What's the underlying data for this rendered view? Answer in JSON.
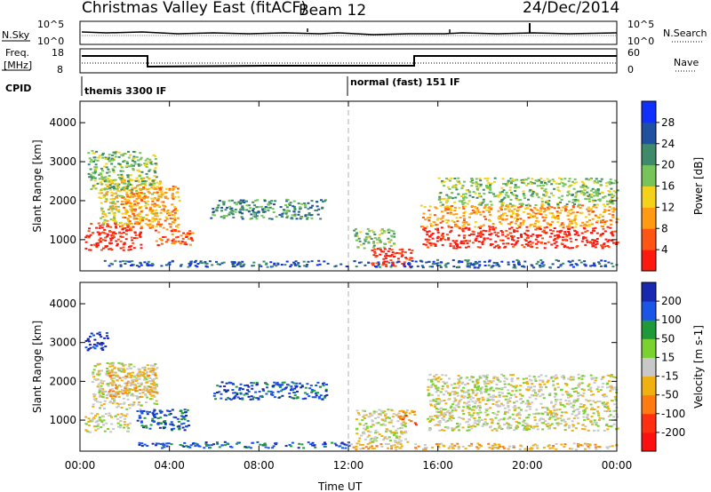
{
  "header": {
    "title": "Christmas Valley East (fitACF)",
    "beam": "Beam 12",
    "date": "24/Dec/2014"
  },
  "noise_panel": {
    "left_label": "N.Sky",
    "right_label": "N.Search",
    "left_ticks": [
      "10^5",
      "10^0"
    ],
    "right_ticks": [
      "10^5",
      "10^0"
    ]
  },
  "freq_panel": {
    "left_label_1": "Freq.",
    "left_label_2": "[MHz]",
    "right_label": "Nave",
    "left_ticks": [
      "18",
      "8"
    ],
    "right_ticks": [
      "60",
      "0"
    ]
  },
  "cpid": {
    "label": "CPID",
    "modes": [
      "themis 3300 IF",
      "normal (fast) 151 IF"
    ]
  },
  "x_axis": {
    "ticks": [
      "00:00",
      "04:00",
      "08:00",
      "12:00",
      "16:00",
      "20:00",
      "00:00"
    ],
    "label": "Time UT"
  },
  "chart_data": [
    {
      "type": "heatmap",
      "name": "power",
      "ylabel": "Slant Range [km]",
      "yticks": [
        1000,
        2000,
        3000,
        4000
      ],
      "ylim": [
        200,
        4550
      ],
      "xlim_hours": [
        0,
        24
      ],
      "colorbar": {
        "label": "Power [dB]",
        "ticks": [
          "4",
          "8",
          "12",
          "16",
          "20",
          "24",
          "28"
        ],
        "colors": [
          "#1030ff",
          "#2050a0",
          "#3f8a6a",
          "#76c45a",
          "#f5d21a",
          "#ff9a12",
          "#ff5514",
          "#ff1a10"
        ]
      },
      "regions": [
        {
          "t0": 0.2,
          "t1": 2.7,
          "r0": 750,
          "r1": 1450,
          "level": 7
        },
        {
          "t0": 0.8,
          "t1": 3.6,
          "r0": 1400,
          "r1": 2600,
          "level": 4
        },
        {
          "t0": 1.8,
          "t1": 4.4,
          "r0": 1300,
          "r1": 2400,
          "level": 5
        },
        {
          "t0": 3.3,
          "t1": 5.0,
          "r0": 850,
          "r1": 1300,
          "level": 6
        },
        {
          "t0": 0.3,
          "t1": 3.4,
          "r0": 2300,
          "r1": 3300,
          "level": 3
        },
        {
          "t0": 5.8,
          "t1": 11.0,
          "r0": 1550,
          "r1": 2050,
          "level": 2
        },
        {
          "t0": 1.0,
          "t1": 14.0,
          "r0": 320,
          "r1": 480,
          "level": 1
        },
        {
          "t0": 12.2,
          "t1": 14.0,
          "r0": 800,
          "r1": 1300,
          "level": 3
        },
        {
          "t0": 13.0,
          "t1": 14.8,
          "r0": 300,
          "r1": 800,
          "level": 7
        },
        {
          "t0": 15.3,
          "t1": 24.0,
          "r0": 800,
          "r1": 1350,
          "level": 7
        },
        {
          "t0": 15.2,
          "t1": 24.0,
          "r0": 1350,
          "r1": 1900,
          "level": 5
        },
        {
          "t0": 16.0,
          "t1": 24.0,
          "r0": 1900,
          "r1": 2600,
          "level": 3
        },
        {
          "t0": 14.0,
          "t1": 24.0,
          "r0": 300,
          "r1": 500,
          "level": 1
        }
      ]
    },
    {
      "type": "heatmap",
      "name": "velocity",
      "ylabel": "Slant Range [km]",
      "yticks": [
        1000,
        2000,
        3000,
        4000
      ],
      "ylim": [
        200,
        4550
      ],
      "xlim_hours": [
        0,
        24
      ],
      "colorbar": {
        "label": "Velocity [m s-1]",
        "ticks": [
          "200",
          "100",
          "50",
          "15",
          "-15",
          "-50",
          "-100",
          "-200"
        ],
        "colors": [
          "#1828b0",
          "#1a55e8",
          "#1f9a3a",
          "#7ad230",
          "#c8c8c8",
          "#f0b010",
          "#ff7a10",
          "#ff3010",
          "#ff1010"
        ]
      },
      "regions": [
        {
          "t0": 0.2,
          "t1": 2.2,
          "r0": 700,
          "r1": 1200,
          "level": 4
        },
        {
          "t0": 0.5,
          "t1": 3.4,
          "r0": 1300,
          "r1": 2500,
          "level": 4
        },
        {
          "t0": 1.2,
          "t1": 3.4,
          "r0": 1600,
          "r1": 2400,
          "level": 5
        },
        {
          "t0": 2.5,
          "t1": 5.0,
          "r0": 750,
          "r1": 1300,
          "level": 1
        },
        {
          "t0": 0.2,
          "t1": 1.2,
          "r0": 2800,
          "r1": 3300,
          "level": 0
        },
        {
          "t0": 5.9,
          "t1": 11.0,
          "r0": 1550,
          "r1": 2000,
          "level": 1
        },
        {
          "t0": 2.5,
          "t1": 12.0,
          "r0": 300,
          "r1": 460,
          "level": 1
        },
        {
          "t0": 12.0,
          "t1": 24.0,
          "r0": 260,
          "r1": 420,
          "level": 5
        },
        {
          "t0": 12.3,
          "t1": 14.6,
          "r0": 400,
          "r1": 1300,
          "level": 4
        },
        {
          "t0": 14.2,
          "t1": 15.0,
          "r0": 900,
          "r1": 1300,
          "level": 6
        },
        {
          "t0": 15.5,
          "t1": 24.0,
          "r0": 750,
          "r1": 2200,
          "level": 4
        }
      ]
    }
  ]
}
